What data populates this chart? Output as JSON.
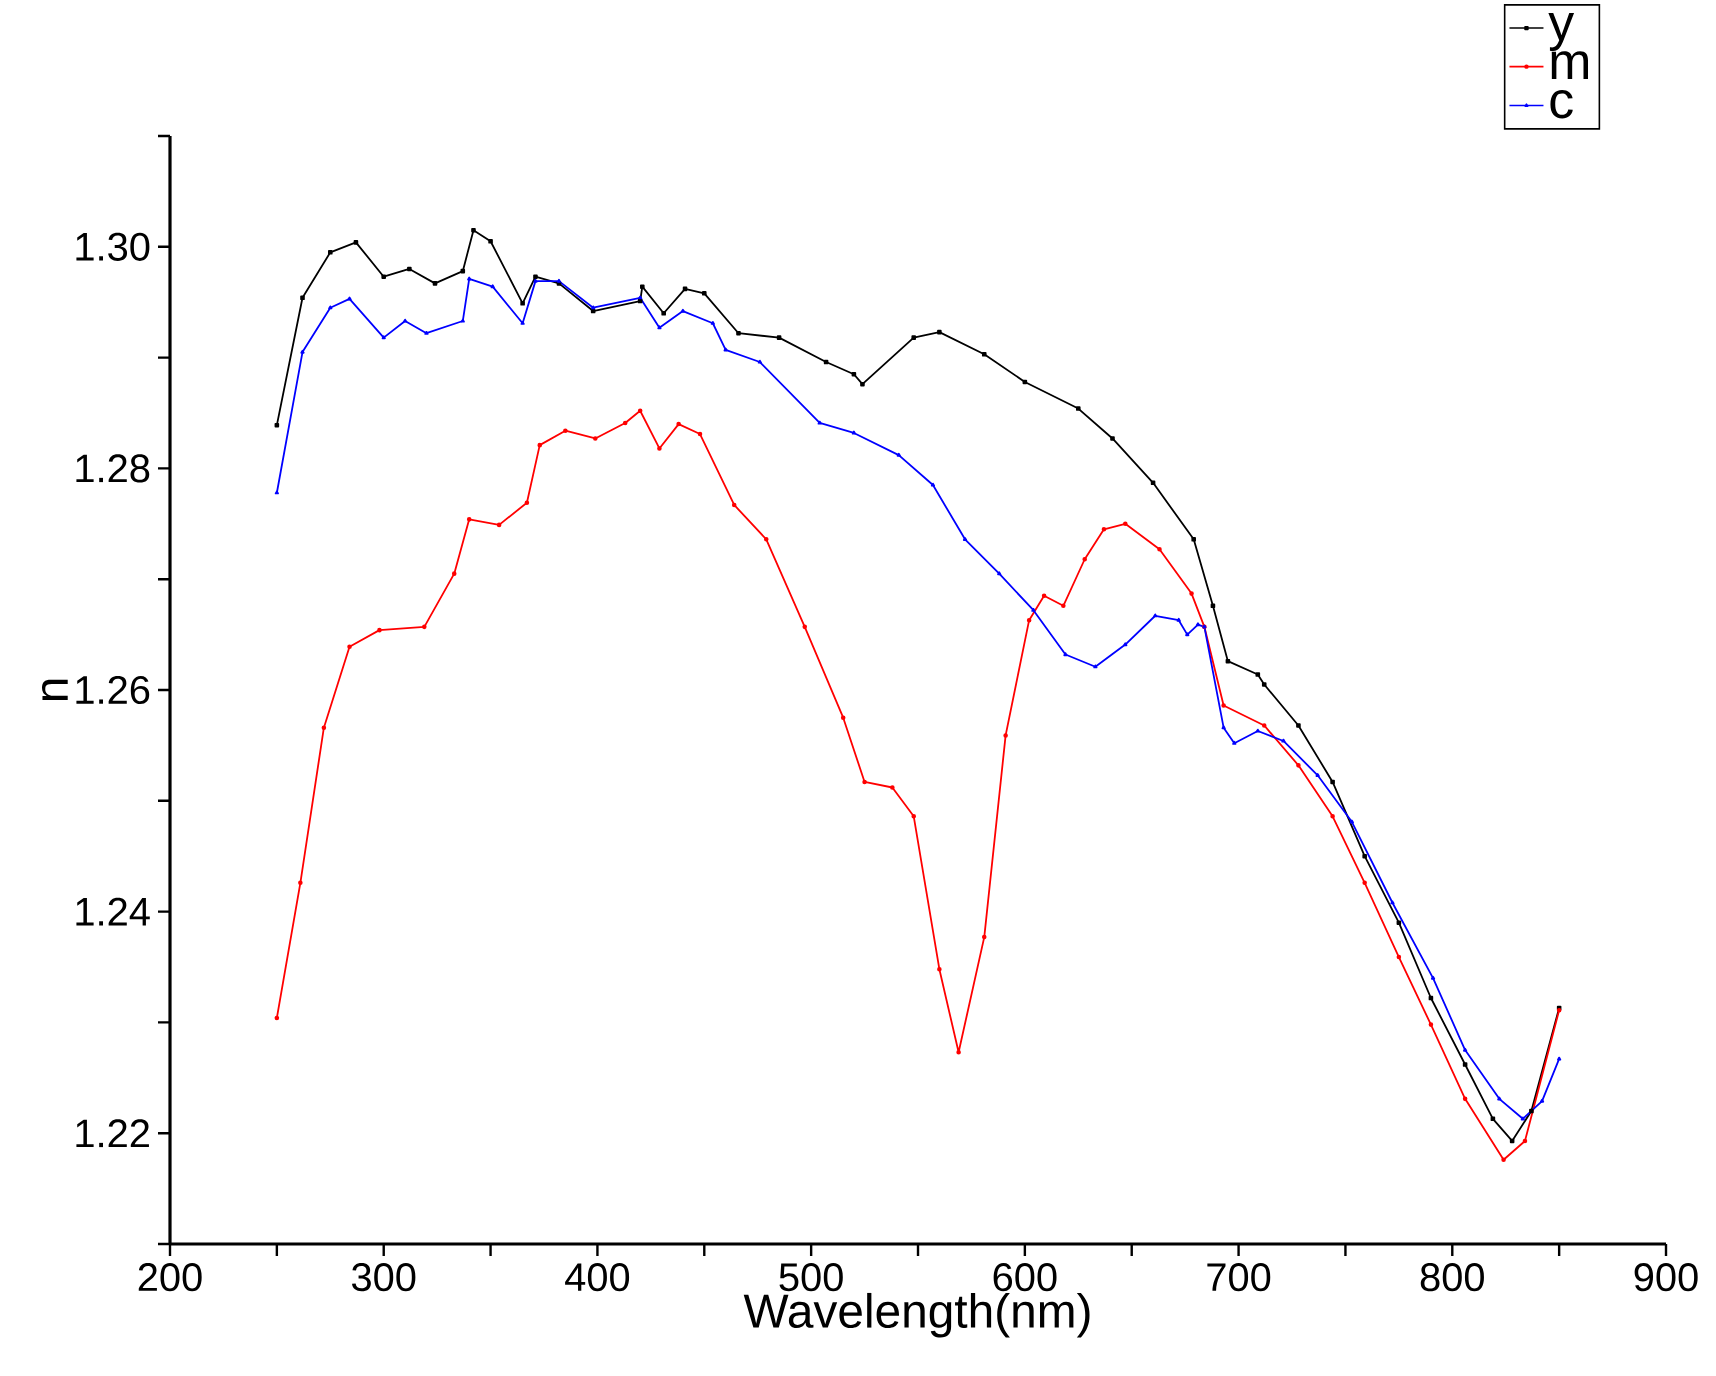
{
  "chart_data": {
    "type": "line",
    "xlabel": "Wavelength(nm)",
    "ylabel": "n",
    "xlim": [
      200,
      900
    ],
    "ylim": [
      1.21,
      1.31
    ],
    "xticks": [
      200,
      {
        "value": 250,
        "label": null
      },
      300,
      {
        "value": 350,
        "label": null
      },
      400,
      {
        "value": 450,
        "label": null
      },
      500,
      {
        "value": 550,
        "label": null
      },
      600,
      {
        "value": 650,
        "label": null
      },
      700,
      {
        "value": 750,
        "label": null
      },
      800,
      {
        "value": 850,
        "label": null
      },
      900
    ],
    "yticks": [
      {
        "value": 1.21,
        "label": null
      },
      {
        "value": 1.22,
        "label": "1.22"
      },
      {
        "value": 1.23,
        "label": null
      },
      {
        "value": 1.24,
        "label": "1.24"
      },
      {
        "value": 1.25,
        "label": null
      },
      {
        "value": 1.26,
        "label": "1.26"
      },
      {
        "value": 1.27,
        "label": null
      },
      {
        "value": 1.28,
        "label": "1.28"
      },
      {
        "value": 1.29,
        "label": null
      },
      {
        "value": 1.3,
        "label": "1.30"
      },
      {
        "value": 1.31,
        "label": null
      }
    ],
    "legend": "top right",
    "grid": false,
    "line_style": "solid",
    "series": [
      {
        "name": "y",
        "color": "#000000",
        "marker": "square",
        "x": [
          250,
          262,
          275,
          287,
          300,
          312,
          324,
          337,
          342,
          350,
          365,
          371,
          382,
          398,
          420,
          421,
          431,
          441,
          450,
          466,
          485,
          507,
          520,
          524,
          548,
          560,
          581,
          600,
          625,
          641,
          660,
          679,
          688,
          695,
          709,
          712,
          728,
          744,
          759,
          775,
          790,
          806,
          819,
          828,
          837,
          850
        ],
        "values": [
          1.2839,
          1.2954,
          1.2995,
          1.3004,
          1.2973,
          1.298,
          1.2967,
          1.2978,
          1.3015,
          1.3005,
          1.2949,
          1.2973,
          1.2967,
          1.2942,
          1.2951,
          1.2964,
          1.294,
          1.2962,
          1.2958,
          1.2922,
          1.2918,
          1.2896,
          1.2885,
          1.2876,
          1.2918,
          1.2923,
          1.2903,
          1.2878,
          1.2854,
          1.2827,
          1.2787,
          1.2736,
          1.2676,
          1.2626,
          1.2614,
          1.2605,
          1.2568,
          1.2517,
          1.245,
          1.239,
          1.2322,
          1.2262,
          1.2213,
          1.2193,
          1.222,
          1.2313
        ]
      },
      {
        "name": "m",
        "color": "#ff0000",
        "marker": "circle",
        "x": [
          250,
          261,
          272,
          284,
          298,
          319,
          333,
          340,
          354,
          367,
          373,
          385,
          399,
          413,
          420,
          429,
          438,
          448,
          464,
          479,
          497,
          515,
          525,
          538,
          548,
          560,
          569,
          581,
          591,
          602,
          609,
          618,
          628,
          637,
          647,
          663,
          678,
          684,
          693,
          712,
          728,
          744,
          759,
          775,
          790,
          806,
          824,
          834,
          850
        ],
        "values": [
          1.2304,
          1.2426,
          1.2566,
          1.2639,
          1.2654,
          1.2657,
          1.2705,
          1.2754,
          1.2749,
          1.2769,
          1.2821,
          1.2834,
          1.2827,
          1.2841,
          1.2852,
          1.2818,
          1.284,
          1.2831,
          1.2767,
          1.2736,
          1.2657,
          1.2575,
          1.2517,
          1.2512,
          1.2486,
          1.2348,
          1.2273,
          1.2377,
          1.2559,
          1.2663,
          1.2685,
          1.2676,
          1.2718,
          1.2745,
          1.275,
          1.2727,
          1.2687,
          1.2657,
          1.2586,
          1.2568,
          1.2532,
          1.2486,
          1.2426,
          1.2359,
          1.2298,
          1.2231,
          1.2176,
          1.2193,
          1.2311
        ]
      },
      {
        "name": "c",
        "color": "#0000ff",
        "marker": "triangle",
        "x": [
          250,
          262,
          275,
          284,
          300,
          310,
          320,
          337,
          340,
          351,
          365,
          371,
          382,
          398,
          420,
          429,
          440,
          454,
          460,
          476,
          504,
          520,
          541,
          557,
          572,
          588,
          604,
          619,
          633,
          647,
          661,
          672,
          676,
          681,
          684,
          693,
          698,
          709,
          721,
          737,
          753,
          772,
          791,
          806,
          822,
          833,
          842,
          850
        ],
        "values": [
          1.2778,
          1.2905,
          1.2945,
          1.2953,
          1.2918,
          1.2933,
          1.2922,
          1.2933,
          1.2971,
          1.2964,
          1.2931,
          1.2969,
          1.2969,
          1.2945,
          1.2954,
          1.2927,
          1.2942,
          1.2931,
          1.2907,
          1.2896,
          1.2841,
          1.2832,
          1.2812,
          1.2785,
          1.2736,
          1.2705,
          1.2672,
          1.2632,
          1.2621,
          1.2641,
          1.2667,
          1.2663,
          1.265,
          1.2659,
          1.2657,
          1.2566,
          1.2552,
          1.2563,
          1.2554,
          1.2523,
          1.2481,
          1.2408,
          1.234,
          1.2275,
          1.2231,
          1.2213,
          1.2229,
          1.2267
        ]
      }
    ]
  }
}
